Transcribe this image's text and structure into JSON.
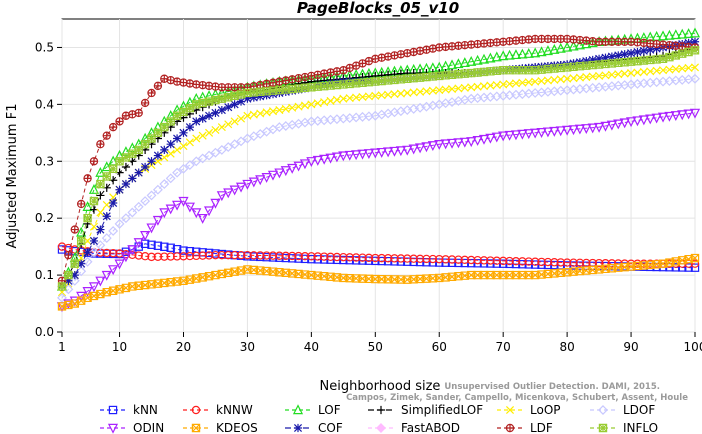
{
  "chart_data": {
    "type": "line",
    "title": "PageBlocks_05_v10",
    "xlabel": "Neighborhood size",
    "ylabel": "Adjusted Maximum F1",
    "xlim": [
      1,
      100
    ],
    "ylim": [
      0.0,
      0.55
    ],
    "x_ticks": [
      1,
      10,
      20,
      30,
      40,
      50,
      60,
      70,
      80,
      90,
      100
    ],
    "y_ticks": [
      0.0,
      0.1,
      0.2,
      0.3,
      0.4,
      0.5
    ],
    "legend_position": "bottom",
    "watermark": [
      "Campos, Zimek, Sander, Campello, Micenkova, Schubert, Assent, Houle",
      "Unsupervised Outlier Detection. DAMI, 2015."
    ],
    "series": [
      {
        "name": "kNN",
        "color": "#1f1fff",
        "marker": "square",
        "dash": "4,3",
        "points": [
          [
            1,
            0.145
          ],
          [
            3,
            0.142
          ],
          [
            6,
            0.138
          ],
          [
            10,
            0.137
          ],
          [
            12,
            0.145
          ],
          [
            14,
            0.155
          ],
          [
            18,
            0.148
          ],
          [
            20,
            0.143
          ],
          [
            25,
            0.138
          ],
          [
            30,
            0.133
          ],
          [
            40,
            0.128
          ],
          [
            50,
            0.125
          ],
          [
            60,
            0.122
          ],
          [
            70,
            0.12
          ],
          [
            80,
            0.117
          ],
          [
            90,
            0.115
          ],
          [
            100,
            0.113
          ]
        ]
      },
      {
        "name": "kNNW",
        "color": "#ff1f1f",
        "marker": "circle",
        "dash": "4,3",
        "points": [
          [
            1,
            0.15
          ],
          [
            3,
            0.145
          ],
          [
            6,
            0.14
          ],
          [
            10,
            0.138
          ],
          [
            15,
            0.132
          ],
          [
            20,
            0.133
          ],
          [
            25,
            0.135
          ],
          [
            30,
            0.135
          ],
          [
            40,
            0.133
          ],
          [
            50,
            0.13
          ],
          [
            60,
            0.128
          ],
          [
            70,
            0.125
          ],
          [
            80,
            0.122
          ],
          [
            90,
            0.12
          ],
          [
            100,
            0.12
          ]
        ]
      },
      {
        "name": "LOF",
        "color": "#22dd22",
        "marker": "triangle-up",
        "dash": "4,3",
        "points": [
          [
            1,
            0.08
          ],
          [
            3,
            0.13
          ],
          [
            5,
            0.22
          ],
          [
            7,
            0.28
          ],
          [
            10,
            0.31
          ],
          [
            13,
            0.33
          ],
          [
            16,
            0.36
          ],
          [
            19,
            0.39
          ],
          [
            22,
            0.41
          ],
          [
            26,
            0.42
          ],
          [
            30,
            0.43
          ],
          [
            35,
            0.44
          ],
          [
            40,
            0.445
          ],
          [
            45,
            0.45
          ],
          [
            50,
            0.455
          ],
          [
            55,
            0.46
          ],
          [
            60,
            0.465
          ],
          [
            65,
            0.475
          ],
          [
            70,
            0.485
          ],
          [
            75,
            0.49
          ],
          [
            80,
            0.5
          ],
          [
            85,
            0.51
          ],
          [
            90,
            0.515
          ],
          [
            95,
            0.52
          ],
          [
            100,
            0.525
          ]
        ]
      },
      {
        "name": "SimplifiedLOF",
        "color": "#000000",
        "marker": "plus",
        "dash": "6,3",
        "points": [
          [
            1,
            0.08
          ],
          [
            3,
            0.12
          ],
          [
            5,
            0.19
          ],
          [
            7,
            0.24
          ],
          [
            10,
            0.28
          ],
          [
            13,
            0.31
          ],
          [
            16,
            0.34
          ],
          [
            19,
            0.37
          ],
          [
            22,
            0.39
          ],
          [
            26,
            0.41
          ],
          [
            30,
            0.42
          ],
          [
            35,
            0.43
          ],
          [
            40,
            0.44
          ],
          [
            45,
            0.445
          ],
          [
            50,
            0.45
          ],
          [
            55,
            0.455
          ],
          [
            60,
            0.455
          ],
          [
            65,
            0.455
          ],
          [
            70,
            0.46
          ],
          [
            75,
            0.465
          ],
          [
            80,
            0.47
          ],
          [
            85,
            0.475
          ],
          [
            90,
            0.48
          ],
          [
            95,
            0.485
          ],
          [
            100,
            0.5
          ]
        ]
      },
      {
        "name": "LoOP",
        "color": "#ffee00",
        "marker": "x",
        "dash": "4,3",
        "points": [
          [
            1,
            0.07
          ],
          [
            3,
            0.1
          ],
          [
            5,
            0.16
          ],
          [
            7,
            0.21
          ],
          [
            10,
            0.25
          ],
          [
            13,
            0.28
          ],
          [
            16,
            0.3
          ],
          [
            19,
            0.32
          ],
          [
            22,
            0.34
          ],
          [
            26,
            0.36
          ],
          [
            30,
            0.38
          ],
          [
            35,
            0.39
          ],
          [
            40,
            0.4
          ],
          [
            45,
            0.41
          ],
          [
            50,
            0.415
          ],
          [
            55,
            0.42
          ],
          [
            60,
            0.425
          ],
          [
            65,
            0.43
          ],
          [
            70,
            0.435
          ],
          [
            75,
            0.44
          ],
          [
            80,
            0.445
          ],
          [
            85,
            0.45
          ],
          [
            90,
            0.455
          ],
          [
            95,
            0.46
          ],
          [
            100,
            0.465
          ]
        ]
      },
      {
        "name": "LDOF",
        "color": "#c8c8ff",
        "marker": "diamond",
        "dash": "4,3",
        "points": [
          [
            1,
            0.06
          ],
          [
            3,
            0.09
          ],
          [
            6,
            0.14
          ],
          [
            10,
            0.19
          ],
          [
            13,
            0.22
          ],
          [
            16,
            0.25
          ],
          [
            19,
            0.28
          ],
          [
            22,
            0.3
          ],
          [
            26,
            0.32
          ],
          [
            30,
            0.34
          ],
          [
            35,
            0.36
          ],
          [
            40,
            0.37
          ],
          [
            45,
            0.375
          ],
          [
            50,
            0.38
          ],
          [
            55,
            0.39
          ],
          [
            60,
            0.4
          ],
          [
            65,
            0.41
          ],
          [
            70,
            0.415
          ],
          [
            75,
            0.42
          ],
          [
            80,
            0.425
          ],
          [
            85,
            0.43
          ],
          [
            90,
            0.435
          ],
          [
            95,
            0.44
          ],
          [
            100,
            0.445
          ]
        ]
      },
      {
        "name": "ODIN",
        "color": "#aa22ff",
        "marker": "triangle-down",
        "dash": "4,3",
        "points": [
          [
            1,
            0.045
          ],
          [
            3,
            0.055
          ],
          [
            6,
            0.08
          ],
          [
            10,
            0.12
          ],
          [
            14,
            0.17
          ],
          [
            17,
            0.21
          ],
          [
            20,
            0.23
          ],
          [
            23,
            0.2
          ],
          [
            26,
            0.24
          ],
          [
            30,
            0.26
          ],
          [
            35,
            0.28
          ],
          [
            40,
            0.3
          ],
          [
            45,
            0.31
          ],
          [
            50,
            0.315
          ],
          [
            55,
            0.32
          ],
          [
            60,
            0.33
          ],
          [
            65,
            0.335
          ],
          [
            70,
            0.345
          ],
          [
            75,
            0.35
          ],
          [
            80,
            0.355
          ],
          [
            85,
            0.36
          ],
          [
            90,
            0.37
          ],
          [
            95,
            0.378
          ],
          [
            100,
            0.385
          ]
        ]
      },
      {
        "name": "KDEOS",
        "color": "#ffaa00",
        "marker": "square-x",
        "dash": "4,3",
        "points": [
          [
            1,
            0.045
          ],
          [
            3,
            0.05
          ],
          [
            5,
            0.06
          ],
          [
            8,
            0.07
          ],
          [
            12,
            0.08
          ],
          [
            16,
            0.085
          ],
          [
            20,
            0.09
          ],
          [
            25,
            0.1
          ],
          [
            30,
            0.11
          ],
          [
            35,
            0.105
          ],
          [
            40,
            0.1
          ],
          [
            45,
            0.095
          ],
          [
            50,
            0.093
          ],
          [
            55,
            0.092
          ],
          [
            60,
            0.095
          ],
          [
            65,
            0.1
          ],
          [
            70,
            0.1
          ],
          [
            75,
            0.1
          ],
          [
            80,
            0.105
          ],
          [
            85,
            0.11
          ],
          [
            90,
            0.115
          ],
          [
            95,
            0.12
          ],
          [
            100,
            0.13
          ]
        ]
      },
      {
        "name": "COF",
        "color": "#1a1aaa",
        "marker": "star",
        "dash": "6,3",
        "points": [
          [
            1,
            0.08
          ],
          [
            3,
            0.1
          ],
          [
            5,
            0.14
          ],
          [
            7,
            0.18
          ],
          [
            10,
            0.25
          ],
          [
            13,
            0.28
          ],
          [
            16,
            0.31
          ],
          [
            19,
            0.34
          ],
          [
            22,
            0.37
          ],
          [
            26,
            0.39
          ],
          [
            30,
            0.41
          ],
          [
            35,
            0.42
          ],
          [
            40,
            0.43
          ],
          [
            45,
            0.44
          ],
          [
            50,
            0.44
          ],
          [
            55,
            0.445
          ],
          [
            60,
            0.45
          ],
          [
            65,
            0.455
          ],
          [
            70,
            0.46
          ],
          [
            75,
            0.465
          ],
          [
            80,
            0.47
          ],
          [
            85,
            0.48
          ],
          [
            90,
            0.49
          ],
          [
            95,
            0.5
          ],
          [
            100,
            0.51
          ]
        ]
      },
      {
        "name": "FastABOD",
        "color": "#ffbbff",
        "marker": "diamond-filled",
        "dash": "4,3",
        "points": []
      },
      {
        "name": "LDF",
        "color": "#b22222",
        "marker": "circle-plus",
        "dash": "4,3",
        "points": [
          [
            1,
            0.09
          ],
          [
            3,
            0.18
          ],
          [
            5,
            0.27
          ],
          [
            7,
            0.33
          ],
          [
            9,
            0.36
          ],
          [
            11,
            0.38
          ],
          [
            13,
            0.385
          ],
          [
            15,
            0.42
          ],
          [
            17,
            0.445
          ],
          [
            19,
            0.44
          ],
          [
            22,
            0.435
          ],
          [
            26,
            0.43
          ],
          [
            30,
            0.43
          ],
          [
            35,
            0.44
          ],
          [
            40,
            0.45
          ],
          [
            45,
            0.46
          ],
          [
            50,
            0.48
          ],
          [
            55,
            0.49
          ],
          [
            60,
            0.5
          ],
          [
            65,
            0.505
          ],
          [
            70,
            0.51
          ],
          [
            75,
            0.515
          ],
          [
            80,
            0.515
          ],
          [
            85,
            0.51
          ],
          [
            90,
            0.51
          ],
          [
            95,
            0.505
          ],
          [
            100,
            0.5
          ]
        ]
      },
      {
        "name": "INFLO",
        "color": "#99cc33",
        "marker": "square-star",
        "dash": "4,3",
        "points": [
          [
            1,
            0.08
          ],
          [
            3,
            0.12
          ],
          [
            5,
            0.2
          ],
          [
            7,
            0.26
          ],
          [
            10,
            0.3
          ],
          [
            13,
            0.32
          ],
          [
            16,
            0.35
          ],
          [
            19,
            0.38
          ],
          [
            22,
            0.4
          ],
          [
            26,
            0.41
          ],
          [
            30,
            0.42
          ],
          [
            35,
            0.425
          ],
          [
            40,
            0.43
          ],
          [
            45,
            0.435
          ],
          [
            50,
            0.44
          ],
          [
            55,
            0.445
          ],
          [
            60,
            0.45
          ],
          [
            65,
            0.455
          ],
          [
            70,
            0.46
          ],
          [
            75,
            0.46
          ],
          [
            80,
            0.465
          ],
          [
            85,
            0.47
          ],
          [
            90,
            0.475
          ],
          [
            95,
            0.48
          ],
          [
            100,
            0.495
          ]
        ]
      }
    ]
  },
  "legend": {
    "rows": [
      [
        "kNN",
        "kNNW",
        "LOF",
        "SimplifiedLOF",
        "LoOP",
        "LDOF"
      ],
      [
        "ODIN",
        "KDEOS",
        "COF",
        "FastABOD",
        "LDF",
        "INFLO"
      ]
    ]
  }
}
